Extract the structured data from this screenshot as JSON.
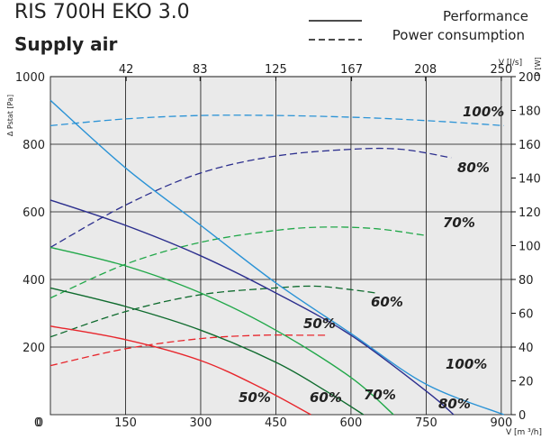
{
  "header": {
    "model_title": "RIS 700H EKO 3.0",
    "subtitle": "Supply air"
  },
  "legend": {
    "performance": "Performance",
    "power_consumption": "Power consumption"
  },
  "chart_data": {
    "type": "line",
    "xlabel": "V [m ³/h]",
    "x_ticks": [
      0,
      150,
      300,
      450,
      600,
      750,
      900
    ],
    "xlim": [
      0,
      920
    ],
    "top_axis_label": "V [l/s]",
    "top_ticks": [
      42,
      83,
      125,
      167,
      208,
      250
    ],
    "ylabel": "Δ Pstat [Pa]",
    "y_ticks": [
      200,
      400,
      600,
      800,
      1000
    ],
    "ylim": [
      0,
      1000
    ],
    "y2label": "P [W]",
    "y2_ticks": [
      0,
      20,
      40,
      60,
      80,
      100,
      120,
      140,
      160,
      180,
      200
    ],
    "y2lim": [
      0,
      200
    ],
    "grid": true,
    "legend_placement": "top-right",
    "performance_series": [
      {
        "name": "100%",
        "color": "#2b93d6",
        "points": [
          [
            0,
            930
          ],
          [
            150,
            730
          ],
          [
            300,
            560
          ],
          [
            450,
            390
          ],
          [
            600,
            240
          ],
          [
            750,
            90
          ],
          [
            905,
            0
          ]
        ]
      },
      {
        "name": "80%",
        "color": "#2c2f8e",
        "points": [
          [
            0,
            635
          ],
          [
            150,
            560
          ],
          [
            300,
            470
          ],
          [
            450,
            360
          ],
          [
            600,
            235
          ],
          [
            750,
            70
          ],
          [
            805,
            0
          ]
        ]
      },
      {
        "name": "70%",
        "color": "#22a84a",
        "points": [
          [
            0,
            495
          ],
          [
            150,
            440
          ],
          [
            300,
            360
          ],
          [
            450,
            250
          ],
          [
            600,
            110
          ],
          [
            685,
            0
          ]
        ]
      },
      {
        "name": "60%",
        "color": "#0f6b2e",
        "points": [
          [
            0,
            375
          ],
          [
            150,
            320
          ],
          [
            300,
            250
          ],
          [
            450,
            155
          ],
          [
            550,
            70
          ],
          [
            625,
            0
          ]
        ]
      },
      {
        "name": "50%",
        "color": "#e8262c",
        "points": [
          [
            0,
            262
          ],
          [
            150,
            222
          ],
          [
            300,
            160
          ],
          [
            420,
            80
          ],
          [
            520,
            0
          ]
        ]
      }
    ],
    "power_series": [
      {
        "name": "100%",
        "color": "#2b93d6",
        "points": [
          [
            0,
            171
          ],
          [
            150,
            175
          ],
          [
            300,
            177
          ],
          [
            450,
            177
          ],
          [
            600,
            176
          ],
          [
            750,
            174
          ],
          [
            905,
            171
          ]
        ]
      },
      {
        "name": "80%",
        "color": "#2c2f8e",
        "points": [
          [
            0,
            99
          ],
          [
            150,
            124
          ],
          [
            300,
            143
          ],
          [
            450,
            153
          ],
          [
            600,
            157
          ],
          [
            700,
            157
          ],
          [
            800,
            152
          ]
        ]
      },
      {
        "name": "70%",
        "color": "#22a84a",
        "points": [
          [
            0,
            69
          ],
          [
            150,
            89
          ],
          [
            300,
            102
          ],
          [
            450,
            109
          ],
          [
            550,
            111
          ],
          [
            650,
            110
          ],
          [
            750,
            106
          ]
        ]
      },
      {
        "name": "60%",
        "color": "#0f6b2e",
        "points": [
          [
            0,
            46
          ],
          [
            150,
            61
          ],
          [
            300,
            71
          ],
          [
            450,
            75
          ],
          [
            530,
            76
          ],
          [
            600,
            74
          ],
          [
            650,
            72
          ]
        ]
      },
      {
        "name": "50%",
        "color": "#e8262c",
        "points": [
          [
            0,
            29
          ],
          [
            150,
            39
          ],
          [
            300,
            45
          ],
          [
            420,
            47
          ],
          [
            500,
            47
          ],
          [
            550,
            47
          ]
        ]
      }
    ],
    "annotations": {
      "perf_100": "100%",
      "perf_80": "80%",
      "perf_70": "70%",
      "perf_60": "60%",
      "perf_50": "50%",
      "pow_100": "100%",
      "pow_80": "80%",
      "pow_70": "70%",
      "pow_60": "60%",
      "pow_50": "50%"
    }
  }
}
